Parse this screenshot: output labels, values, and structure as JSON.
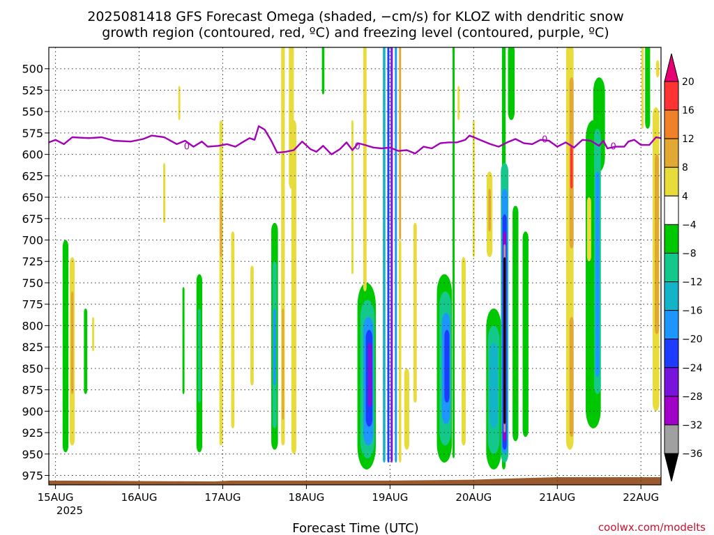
{
  "colors": {
    "frz_line": "#a400b8",
    "ground": "#9a5a2e",
    "credit": "#c8102e"
  },
  "chart_data": {
    "type": "heatmap",
    "title": "2025081418 GFS Forecast Omega (shaded, −cm/s) for KLOZ with dendritic snow",
    "title2": "growth region (contoured, red, ºC) and freezing level (contoured, purple, ºC)",
    "xlabel": "Forecast Time (UTC)",
    "year_label": "2025",
    "credit": "coolwx.com/modelts",
    "y_scale": "pressure, hPa, inverted",
    "ylim": [
      986,
      475
    ],
    "y_ticks": [
      500,
      525,
      550,
      575,
      600,
      625,
      650,
      675,
      700,
      725,
      750,
      775,
      800,
      825,
      850,
      875,
      900,
      925,
      950,
      975
    ],
    "y_tick_labels": [
      "500",
      "525",
      "550",
      "575",
      "600",
      "625",
      "650",
      "675",
      "700",
      "725",
      "750",
      "775",
      "800",
      "825",
      "850",
      "875",
      "900",
      "925",
      "950",
      "975"
    ],
    "x_unit": "days since 15AUG 00Z",
    "xlim": [
      -0.08,
      7.24
    ],
    "x_ticks": [
      0,
      1,
      2,
      3,
      4,
      5,
      6,
      7
    ],
    "x_tick_labels": [
      "15AUG",
      "16AUG",
      "17AUG",
      "18AUG",
      "19AUG",
      "20AUG",
      "21AUG",
      "22AUG"
    ],
    "grid": true,
    "colorbar": {
      "levels": [
        "20",
        "16",
        "12",
        "8",
        "4",
        "−4",
        "−8",
        "−12",
        "−16",
        "−20",
        "−24",
        "−28",
        "−32",
        "−36"
      ],
      "colors": [
        "#e60073",
        "#ff3333",
        "#f0802a",
        "#e2a834",
        "#e8dc3c",
        "#ffffff",
        "#00c800",
        "#14c88c",
        "#14b4c8",
        "#1e96ff",
        "#1e3cff",
        "#7814dc",
        "#a000c8",
        "#a0a0a0",
        "#000000"
      ]
    },
    "freezing_level_hpa": [
      [
        -0.08,
        586
      ],
      [
        0.0,
        583
      ],
      [
        0.1,
        588
      ],
      [
        0.2,
        580
      ],
      [
        0.4,
        581
      ],
      [
        0.55,
        580
      ],
      [
        0.7,
        584
      ],
      [
        0.9,
        585
      ],
      [
        1.05,
        582
      ],
      [
        1.15,
        578
      ],
      [
        1.3,
        580
      ],
      [
        1.45,
        588
      ],
      [
        1.55,
        584
      ],
      [
        1.65,
        591
      ],
      [
        1.75,
        585
      ],
      [
        1.82,
        591
      ],
      [
        1.95,
        590
      ],
      [
        2.05,
        588
      ],
      [
        2.15,
        591
      ],
      [
        2.25,
        585
      ],
      [
        2.32,
        581
      ],
      [
        2.38,
        583
      ],
      [
        2.43,
        567
      ],
      [
        2.5,
        571
      ],
      [
        2.58,
        584
      ],
      [
        2.65,
        598
      ],
      [
        2.75,
        597
      ],
      [
        2.85,
        595
      ],
      [
        2.95,
        585
      ],
      [
        3.05,
        594
      ],
      [
        3.12,
        597
      ],
      [
        3.2,
        590
      ],
      [
        3.3,
        600
      ],
      [
        3.4,
        594
      ],
      [
        3.48,
        586
      ],
      [
        3.55,
        595
      ],
      [
        3.62,
        587
      ],
      [
        3.7,
        589
      ],
      [
        3.8,
        592
      ],
      [
        3.9,
        593
      ],
      [
        4.0,
        592
      ],
      [
        4.1,
        596
      ],
      [
        4.2,
        595
      ],
      [
        4.3,
        599
      ],
      [
        4.4,
        591
      ],
      [
        4.5,
        593
      ],
      [
        4.6,
        587
      ],
      [
        4.7,
        586
      ],
      [
        4.8,
        586
      ],
      [
        4.9,
        583
      ],
      [
        4.95,
        578
      ],
      [
        5.0,
        580
      ],
      [
        5.1,
        584
      ],
      [
        5.2,
        588
      ],
      [
        5.3,
        591
      ],
      [
        5.4,
        586
      ],
      [
        5.5,
        582
      ],
      [
        5.6,
        587
      ],
      [
        5.7,
        588
      ],
      [
        5.8,
        583
      ],
      [
        5.9,
        584
      ],
      [
        6.0,
        591
      ],
      [
        6.1,
        586
      ],
      [
        6.2,
        592
      ],
      [
        6.3,
        583
      ],
      [
        6.4,
        584
      ],
      [
        6.5,
        590
      ],
      [
        6.55,
        584
      ],
      [
        6.6,
        593
      ],
      [
        6.7,
        591
      ],
      [
        6.8,
        591
      ],
      [
        6.85,
        585
      ],
      [
        6.92,
        583
      ],
      [
        7.0,
        589
      ],
      [
        7.1,
        589
      ],
      [
        7.18,
        580
      ],
      [
        7.24,
        581
      ]
    ],
    "freezing_level_labels": [
      {
        "x": 1.57,
        "p": 590,
        "text": "0"
      },
      {
        "x": 3.61,
        "p": 590,
        "text": "0"
      },
      {
        "x": 5.85,
        "p": 582,
        "text": "0"
      },
      {
        "x": 6.67,
        "p": 590,
        "text": "0"
      }
    ],
    "omega_regions": [
      {
        "x": 0.12,
        "p0": 700,
        "p1": 948,
        "w": 0.035,
        "v": -6
      },
      {
        "x": 0.2,
        "p0": 720,
        "p1": 940,
        "w": 0.03,
        "v": 5
      },
      {
        "x": 0.2,
        "p0": 760,
        "p1": 880,
        "w": 0.015,
        "v": 10
      },
      {
        "x": 0.36,
        "p0": 780,
        "p1": 880,
        "w": 0.02,
        "v": -6
      },
      {
        "x": 0.45,
        "p0": 790,
        "p1": 830,
        "w": 0.012,
        "v": 5
      },
      {
        "x": 1.72,
        "p0": 740,
        "p1": 948,
        "w": 0.035,
        "v": -6
      },
      {
        "x": 1.72,
        "p0": 780,
        "p1": 890,
        "w": 0.015,
        "v": -10
      },
      {
        "x": 1.98,
        "p0": 560,
        "p1": 940,
        "w": 0.02,
        "v": 5
      },
      {
        "x": 1.98,
        "p0": 650,
        "p1": 720,
        "w": 0.012,
        "v": 8
      },
      {
        "x": 2.12,
        "p0": 690,
        "p1": 920,
        "w": 0.02,
        "v": 5
      },
      {
        "x": 1.53,
        "p0": 755,
        "p1": 880,
        "w": 0.01,
        "v": -6
      },
      {
        "x": 2.62,
        "p0": 680,
        "p1": 945,
        "w": 0.04,
        "v": -6
      },
      {
        "x": 2.62,
        "p0": 725,
        "p1": 920,
        "w": 0.025,
        "v": -10
      },
      {
        "x": 2.62,
        "p0": 780,
        "p1": 870,
        "w": 0.015,
        "v": -16
      },
      {
        "x": 2.72,
        "p0": 470,
        "p1": 940,
        "w": 0.022,
        "v": 5
      },
      {
        "x": 2.72,
        "p0": 780,
        "p1": 910,
        "w": 0.012,
        "v": 10
      },
      {
        "x": 2.82,
        "p0": 470,
        "p1": 640,
        "w": 0.03,
        "v": 5
      },
      {
        "x": 2.85,
        "p0": 560,
        "p1": 950,
        "w": 0.03,
        "v": 5
      },
      {
        "x": 3.2,
        "p0": 470,
        "p1": 530,
        "w": 0.015,
        "v": -6
      },
      {
        "x": 3.72,
        "p0": 750,
        "p1": 968,
        "w": 0.11,
        "v": -6
      },
      {
        "x": 3.73,
        "p0": 770,
        "p1": 955,
        "w": 0.085,
        "v": -10
      },
      {
        "x": 3.74,
        "p0": 790,
        "p1": 940,
        "w": 0.06,
        "v": -16
      },
      {
        "x": 3.75,
        "p0": 805,
        "p1": 918,
        "w": 0.04,
        "v": -20
      },
      {
        "x": 3.76,
        "p0": 820,
        "p1": 895,
        "w": 0.025,
        "v": -26
      },
      {
        "x": 3.7,
        "p0": 470,
        "p1": 760,
        "w": 0.02,
        "v": 5
      },
      {
        "x": 3.93,
        "p0": 470,
        "p1": 960,
        "w": 0.015,
        "v": -12
      },
      {
        "x": 3.98,
        "p0": 470,
        "p1": 960,
        "w": 0.012,
        "v": -20
      },
      {
        "x": 4.02,
        "p0": 470,
        "p1": 960,
        "w": 0.012,
        "v": -26
      },
      {
        "x": 4.07,
        "p0": 470,
        "p1": 960,
        "w": 0.012,
        "v": -18
      },
      {
        "x": 4.12,
        "p0": 470,
        "p1": 700,
        "w": 0.012,
        "v": 10
      },
      {
        "x": 4.12,
        "p0": 700,
        "p1": 960,
        "w": 0.015,
        "v": 5
      },
      {
        "x": 4.2,
        "p0": 850,
        "p1": 945,
        "w": 0.03,
        "v": 5
      },
      {
        "x": 4.3,
        "p0": 680,
        "p1": 890,
        "w": 0.02,
        "v": 5
      },
      {
        "x": 4.65,
        "p0": 740,
        "p1": 960,
        "w": 0.09,
        "v": -6
      },
      {
        "x": 4.66,
        "p0": 760,
        "p1": 940,
        "w": 0.07,
        "v": -10
      },
      {
        "x": 4.67,
        "p0": 785,
        "p1": 915,
        "w": 0.05,
        "v": -16
      },
      {
        "x": 4.68,
        "p0": 805,
        "p1": 890,
        "w": 0.03,
        "v": -20
      },
      {
        "x": 4.76,
        "p0": 470,
        "p1": 955,
        "w": 0.012,
        "v": -6
      },
      {
        "x": 4.88,
        "p0": 720,
        "p1": 940,
        "w": 0.025,
        "v": 5
      },
      {
        "x": 4.82,
        "p0": 520,
        "p1": 560,
        "w": 0.012,
        "v": 5
      },
      {
        "x": 5.0,
        "p0": 560,
        "p1": 720,
        "w": 0.012,
        "v": 5
      },
      {
        "x": 5.24,
        "p0": 780,
        "p1": 968,
        "w": 0.09,
        "v": -6
      },
      {
        "x": 5.24,
        "p0": 800,
        "p1": 950,
        "w": 0.07,
        "v": -10
      },
      {
        "x": 5.24,
        "p0": 820,
        "p1": 920,
        "w": 0.05,
        "v": -14
      },
      {
        "x": 5.19,
        "p0": 620,
        "p1": 720,
        "w": 0.035,
        "v": 5
      },
      {
        "x": 5.19,
        "p0": 640,
        "p1": 690,
        "w": 0.015,
        "v": 8
      },
      {
        "x": 5.36,
        "p0": 470,
        "p1": 968,
        "w": 0.022,
        "v": -6
      },
      {
        "x": 5.37,
        "p0": 610,
        "p1": 960,
        "w": 0.045,
        "v": -10
      },
      {
        "x": 5.37,
        "p0": 640,
        "p1": 950,
        "w": 0.035,
        "v": -16
      },
      {
        "x": 5.37,
        "p0": 670,
        "p1": 945,
        "w": 0.025,
        "v": -22
      },
      {
        "x": 5.37,
        "p0": 690,
        "p1": 935,
        "w": 0.018,
        "v": -28
      },
      {
        "x": 5.37,
        "p0": 705,
        "p1": 925,
        "w": 0.012,
        "v": -32
      },
      {
        "x": 5.37,
        "p0": 720,
        "p1": 915,
        "w": 0.008,
        "v": -40
      },
      {
        "x": 5.5,
        "p0": 660,
        "p1": 935,
        "w": 0.035,
        "v": -6
      },
      {
        "x": 5.62,
        "p0": 690,
        "p1": 930,
        "w": 0.035,
        "v": -6
      },
      {
        "x": 5.45,
        "p0": 470,
        "p1": 560,
        "w": 0.04,
        "v": -6
      },
      {
        "x": 6.15,
        "p0": 470,
        "p1": 945,
        "w": 0.045,
        "v": 5
      },
      {
        "x": 6.17,
        "p0": 510,
        "p1": 710,
        "w": 0.025,
        "v": 10
      },
      {
        "x": 6.17,
        "p0": 590,
        "p1": 640,
        "w": 0.015,
        "v": 18
      },
      {
        "x": 6.17,
        "p0": 790,
        "p1": 930,
        "w": 0.025,
        "v": 10
      },
      {
        "x": 6.43,
        "p0": 560,
        "p1": 920,
        "w": 0.09,
        "v": -6
      },
      {
        "x": 6.5,
        "p0": 510,
        "p1": 620,
        "w": 0.07,
        "v": -6
      },
      {
        "x": 6.48,
        "p0": 570,
        "p1": 880,
        "w": 0.04,
        "v": -10
      },
      {
        "x": 6.48,
        "p0": 620,
        "p1": 860,
        "w": 0.025,
        "v": -16
      },
      {
        "x": 6.38,
        "p0": 650,
        "p1": 725,
        "w": 0.025,
        "v": 5
      },
      {
        "x": 7.08,
        "p0": 470,
        "p1": 570,
        "w": 0.03,
        "v": -6
      },
      {
        "x": 7.02,
        "p0": 470,
        "p1": 570,
        "w": 0.012,
        "v": 5
      },
      {
        "x": 7.18,
        "p0": 545,
        "p1": 900,
        "w": 0.04,
        "v": 5
      },
      {
        "x": 7.19,
        "p0": 600,
        "p1": 810,
        "w": 0.025,
        "v": 10
      },
      {
        "x": 7.2,
        "p0": 490,
        "p1": 510,
        "w": 0.02,
        "v": 5
      },
      {
        "x": 1.48,
        "p0": 520,
        "p1": 560,
        "w": 0.01,
        "v": 5
      },
      {
        "x": 1.3,
        "p0": 610,
        "p1": 680,
        "w": 0.01,
        "v": 5
      },
      {
        "x": 2.35,
        "p0": 730,
        "p1": 870,
        "w": 0.02,
        "v": 5
      },
      {
        "x": 3.55,
        "p0": 560,
        "p1": 740,
        "w": 0.01,
        "v": 5
      }
    ],
    "surface_hpa": [
      [
        -0.08,
        981
      ],
      [
        1.9,
        982
      ],
      [
        2.1,
        981
      ],
      [
        4.0,
        981
      ],
      [
        5.0,
        980
      ],
      [
        5.3,
        979
      ],
      [
        6.0,
        977
      ],
      [
        7.24,
        977
      ]
    ]
  }
}
